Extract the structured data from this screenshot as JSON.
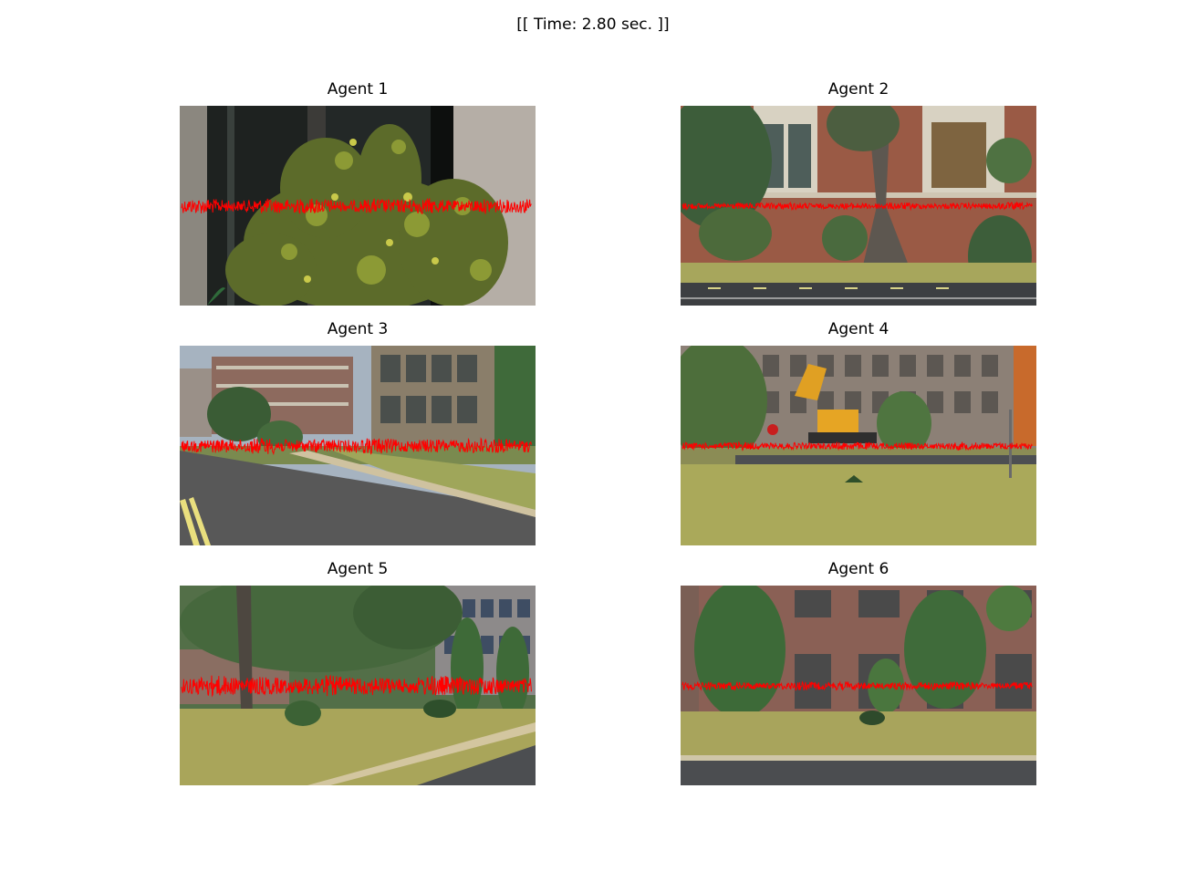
{
  "figure": {
    "title": "[[ Time: 2.80 sec. ]]"
  },
  "panels": [
    {
      "title": "Agent 1",
      "scene": "bush-closeup",
      "wave_amplitude": 1.0
    },
    {
      "title": "Agent 2",
      "scene": "brick-building-tree",
      "wave_amplitude": 0.45
    },
    {
      "title": "Agent 3",
      "scene": "street-buildings",
      "wave_amplitude": 1.0
    },
    {
      "title": "Agent 4",
      "scene": "excavator-lawn",
      "wave_amplitude": 0.5
    },
    {
      "title": "Agent 5",
      "scene": "trees-sidewalk",
      "wave_amplitude": 1.3
    },
    {
      "title": "Agent 6",
      "scene": "brick-facade-shrubs",
      "wave_amplitude": 0.55
    }
  ],
  "colors": {
    "waveform": "#ff0000"
  }
}
